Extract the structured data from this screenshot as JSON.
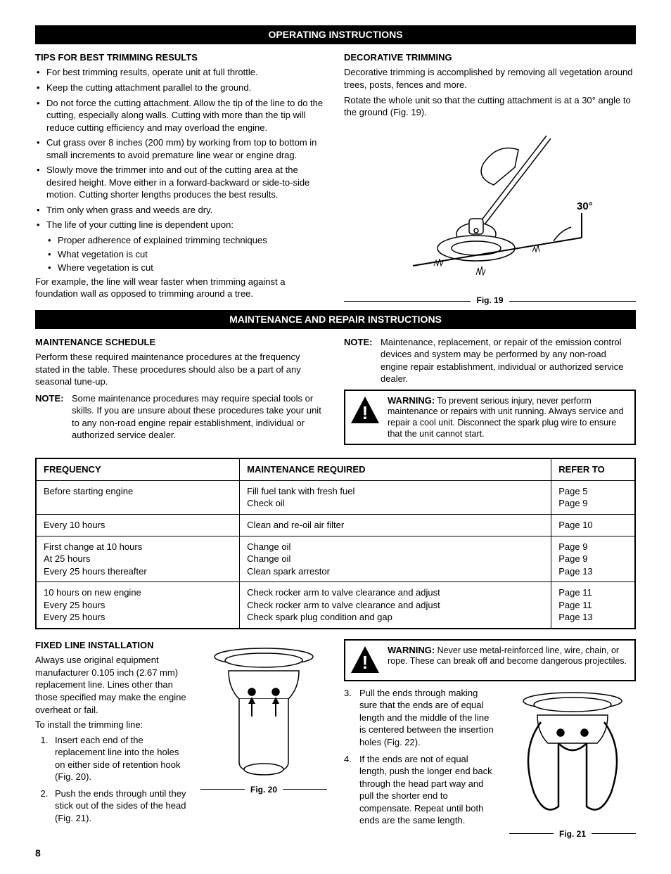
{
  "headers": {
    "operating": "OPERATING INSTRUCTIONS",
    "maintenance": "MAINTENANCE AND REPAIR INSTRUCTIONS"
  },
  "tips": {
    "heading": "TIPS FOR BEST TRIMMING RESULTS",
    "items": [
      "For best trimming results, operate unit at full throttle.",
      "Keep the cutting attachment parallel to the ground.",
      "Do not force the cutting attachment. Allow the tip of the line to do the cutting, especially along walls. Cutting with more than the tip will reduce cutting efficiency and may overload the engine.",
      "Cut grass over 8 inches (200 mm) by working from top to bottom in small increments to avoid premature line wear or engine drag.",
      "Slowly move the trimmer into and out of the cutting area at the desired height. Move either in a forward-backward or side-to-side motion. Cutting shorter lengths produces the best results.",
      "Trim only when grass and weeds are dry.",
      "The life of your cutting line is dependent upon:"
    ],
    "sub_items": [
      "Proper adherence of explained trimming techniques",
      "What vegetation is cut",
      "Where vegetation is cut"
    ],
    "footer": "For example, the line will wear faster when trimming against a foundation wall as opposed to trimming around a tree."
  },
  "decorative": {
    "heading": "DECORATIVE TRIMMING",
    "p1": "Decorative trimming is accomplished by removing all vegetation around trees, posts, fences and more.",
    "p2": "Rotate the whole unit so that the cutting attachment is at a 30° angle to the ground (Fig. 19).",
    "angle_label": "30°",
    "fig_label": "Fig. 19"
  },
  "maint_schedule": {
    "heading": "MAINTENANCE SCHEDULE",
    "p1": "Perform these required maintenance procedures at the frequency stated in the table. These procedures should also be a part of any seasonal tune-up.",
    "note_label": "NOTE:",
    "note1": "Some maintenance procedures may require special tools or skills. If you are unsure about these procedures take your unit to any non-road engine repair establishment, individual or authorized service dealer.",
    "note2": "Maintenance, replacement, or repair of the emission control devices and system may be performed by any non-road engine repair establishment, individual or authorized service dealer."
  },
  "warning1": {
    "label": "WARNING:",
    "text": "To prevent serious injury, never perform maintenance or repairs with unit running. Always service and repair a cool unit. Disconnect the spark plug wire to ensure that the unit cannot start."
  },
  "table": {
    "headers": [
      "FREQUENCY",
      "MAINTENANCE REQUIRED",
      "REFER TO"
    ],
    "rows": [
      [
        "Before starting engine",
        "Fill fuel tank with fresh fuel\nCheck oil",
        "Page 5\nPage 9"
      ],
      [
        "Every 10 hours",
        "Clean and re-oil air filter",
        "Page 10"
      ],
      [
        "First change at 10 hours\nAt 25 hours\nEvery 25 hours thereafter",
        "Change oil\nChange oil\nClean spark arrestor",
        "Page 9\nPage 9\nPage 13"
      ],
      [
        "10 hours on new engine\nEvery 25 hours\nEvery 25 hours",
        "Check rocker arm to valve clearance and adjust\nCheck rocker arm to valve clearance and adjust\nCheck spark plug condition and gap",
        "Page 11\nPage 11\nPage 13"
      ]
    ]
  },
  "fixed_line": {
    "heading": "FIXED LINE INSTALLATION",
    "p1": "Always use original equipment manufacturer 0.105 inch (2.67 mm) replacement line. Lines other than those specified may make the engine overheat or fail.",
    "p2": "To install the trimming line:",
    "steps_left": [
      "Insert each end of the replacement line into the holes on either side of retention hook (Fig. 20).",
      "Push the ends through until they stick out of the sides of the head (Fig. 21)."
    ],
    "fig20_label": "Fig. 20",
    "fig21_label": "Fig. 21"
  },
  "warning2": {
    "label": "WARNING:",
    "text": "Never use metal-reinforced line, wire, chain, or rope. These can break off and become dangerous projectiles."
  },
  "steps_right": [
    {
      "n": "3.",
      "t": "Pull the ends through making sure that the ends are of equal length and the middle of the line is centered between the insertion holes (Fig. 22)."
    },
    {
      "n": "4.",
      "t": "If the ends are not of equal length, push the longer end back through the head part way and pull the shorter end to compensate.  Repeat until both ends are the same length."
    }
  ],
  "page_number": "8"
}
